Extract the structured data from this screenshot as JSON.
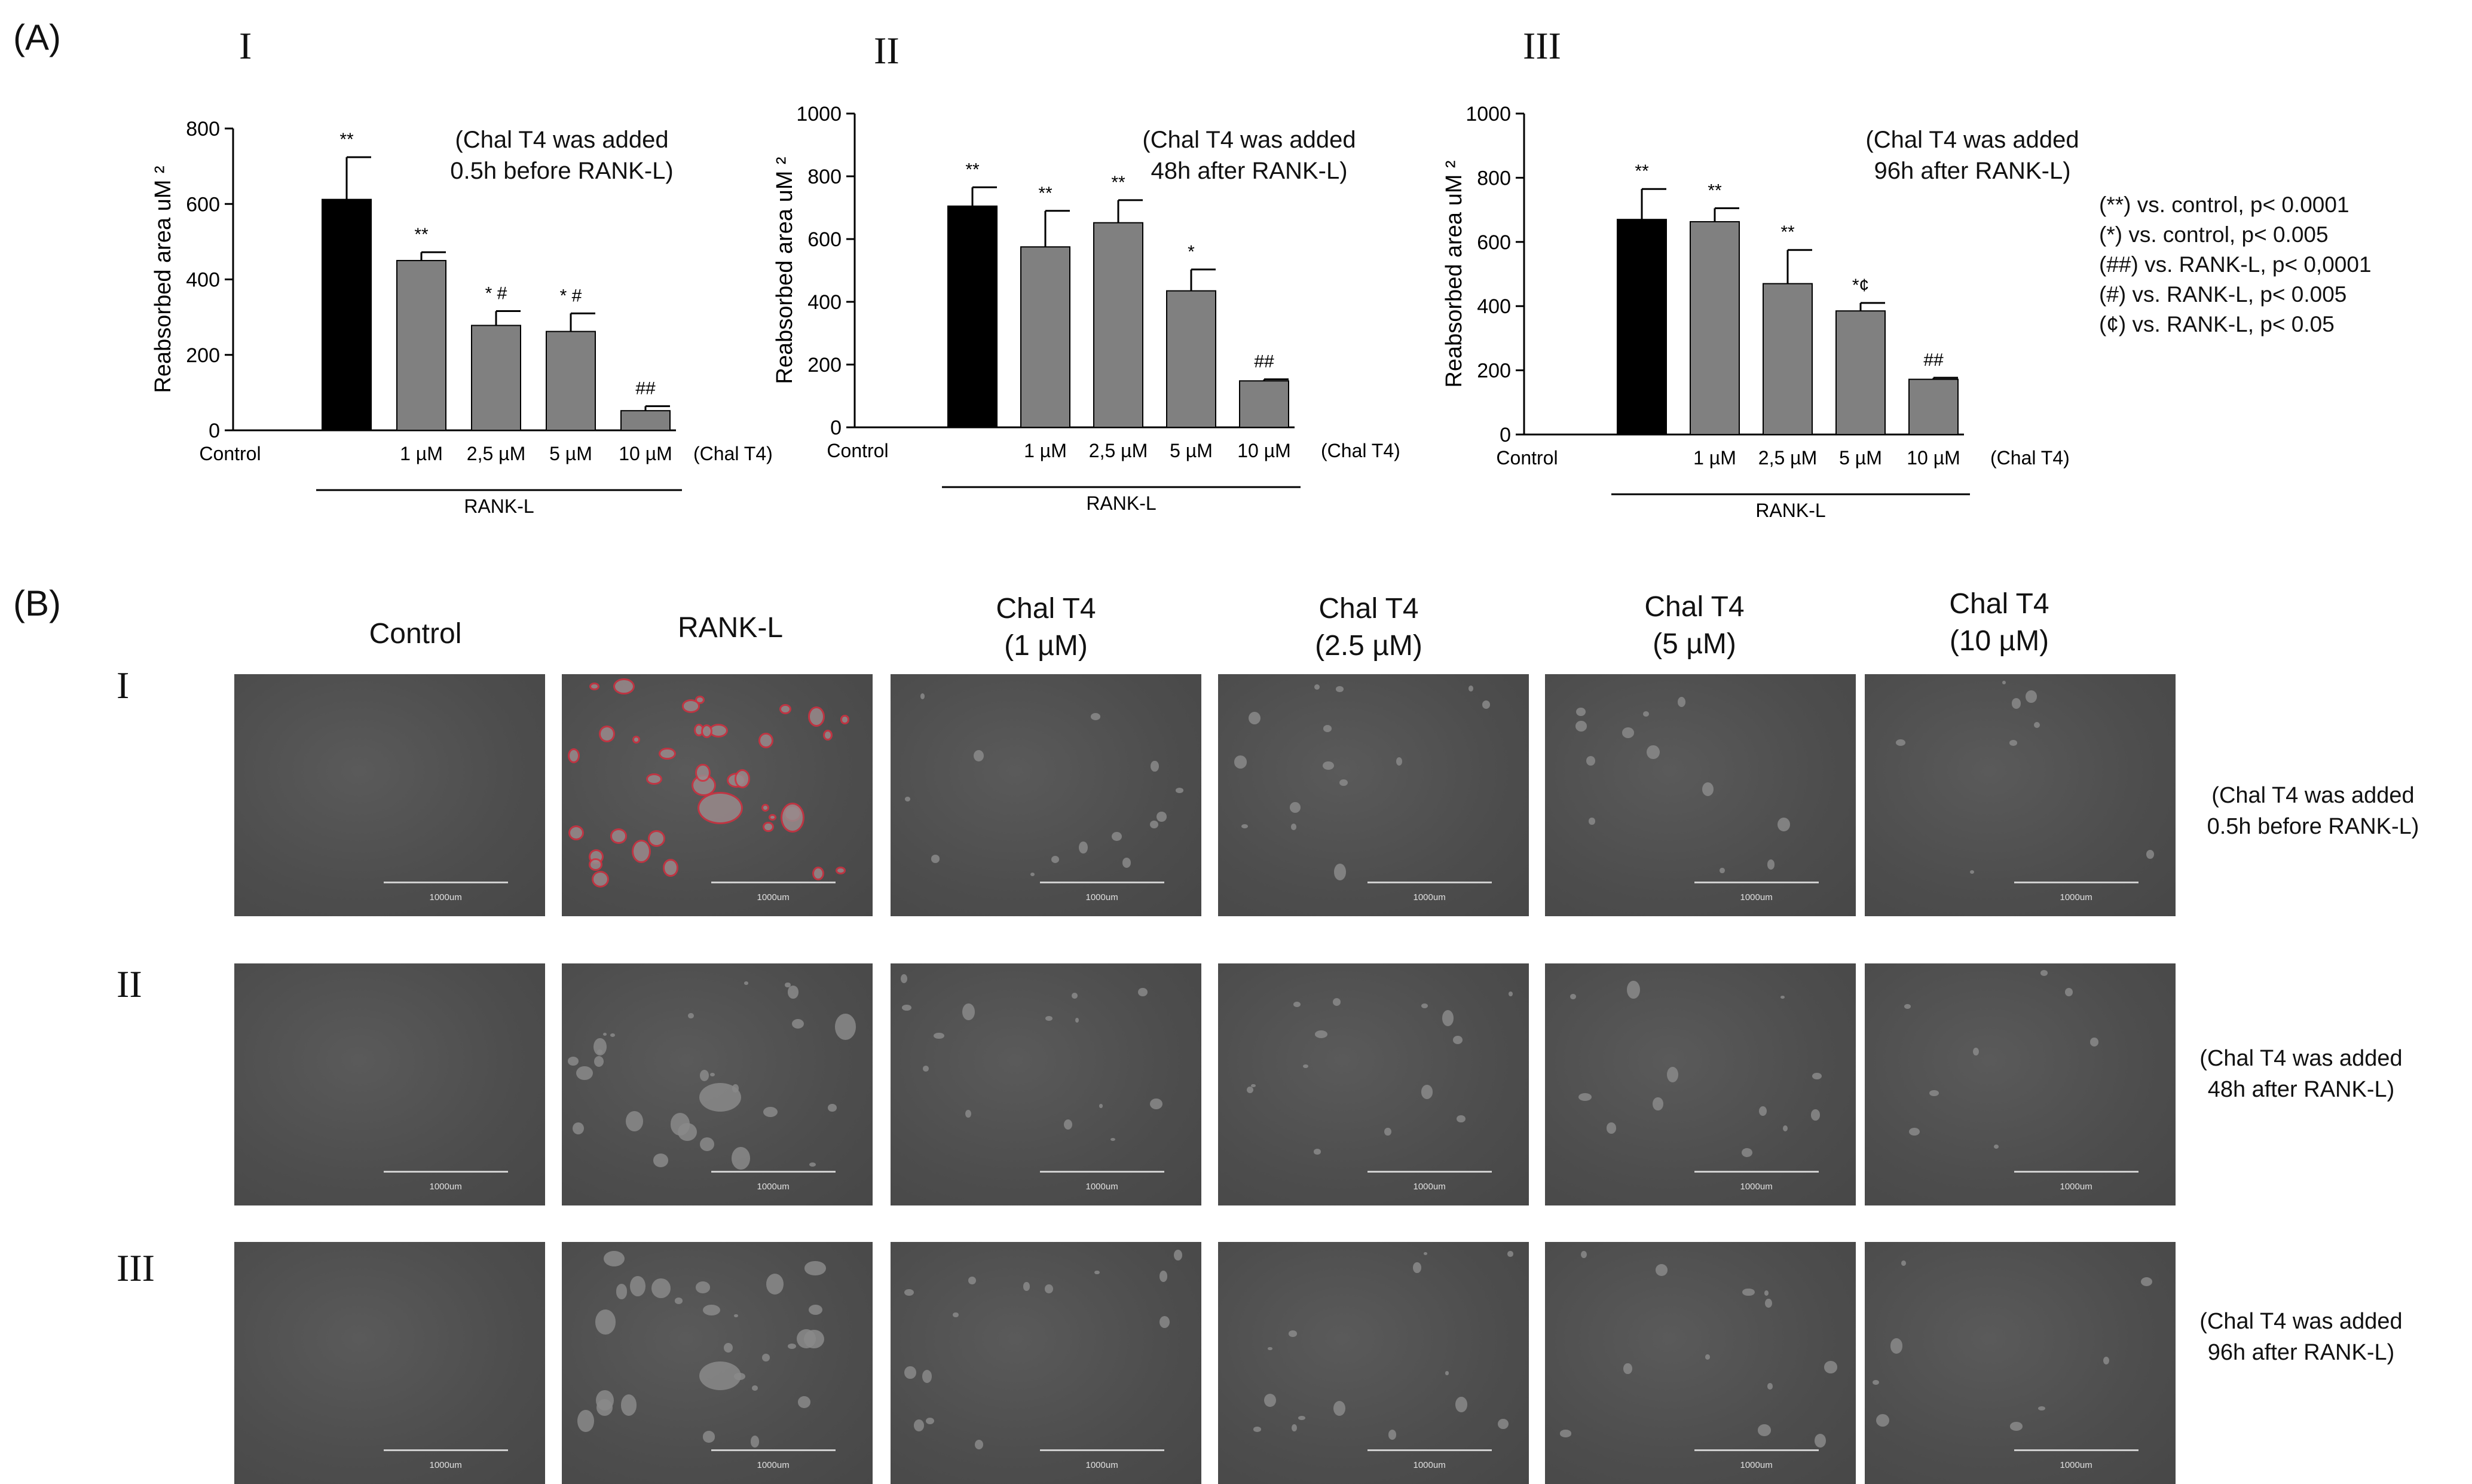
{
  "panel_a": {
    "label": "(A)",
    "legend": [
      "(**) vs. control, p< 0.0001",
      "(*) vs. control, p< 0.005",
      "(##) vs. RANK-L, p< 0,0001",
      "(#) vs. RANK-L, p< 0.005",
      "(¢) vs. RANK-L, p< 0.05"
    ]
  },
  "chart_data": [
    {
      "type": "bar",
      "panel": "I",
      "note_lines": [
        "(Chal T4 was added",
        "0.5h before RANK-L)"
      ],
      "ylabel": "Reabsorbed area uM ²",
      "ylim": [
        0,
        800
      ],
      "yticks": [
        "0",
        "200",
        "400",
        "600",
        "800"
      ],
      "categories": [
        "Control",
        "",
        "1 µM",
        "2,5 µM",
        "5 µM",
        "10 µM"
      ],
      "extra_xlabel": "(Chal T4)",
      "group_label": "RANK-L",
      "values": [
        0,
        612,
        450,
        278,
        262,
        52
      ],
      "errors": [
        0,
        112,
        22,
        38,
        48,
        12
      ],
      "colors": [
        "#000000",
        "#000000",
        "#808080",
        "#808080",
        "#808080",
        "#808080"
      ],
      "annotations": [
        "",
        "**",
        "**",
        "* #",
        "* #",
        "##"
      ]
    },
    {
      "type": "bar",
      "panel": "II",
      "note_lines": [
        "(Chal T4 was added",
        "48h after RANK-L)"
      ],
      "ylabel": "Reabsorbed area uM ²",
      "ylim": [
        0,
        1000
      ],
      "yticks": [
        "0",
        "200",
        "400",
        "600",
        "800",
        "1000"
      ],
      "categories": [
        "Control",
        "",
        "1 µM",
        "2,5 µM",
        "5 µM",
        "10 µM"
      ],
      "extra_xlabel": "(Chal T4)",
      "group_label": "RANK-L",
      "values": [
        0,
        705,
        575,
        652,
        435,
        148
      ],
      "errors": [
        0,
        60,
        115,
        72,
        68,
        5
      ],
      "colors": [
        "#000000",
        "#000000",
        "#808080",
        "#808080",
        "#808080",
        "#808080"
      ],
      "annotations": [
        "",
        "**",
        "**",
        "**",
        "*",
        "##"
      ]
    },
    {
      "type": "bar",
      "panel": "III",
      "note_lines": [
        "(Chal T4 was added",
        "96h after RANK-L)"
      ],
      "ylabel": "Reabsorbed area uM ²",
      "ylim": [
        0,
        1000
      ],
      "yticks": [
        "0",
        "200",
        "400",
        "600",
        "800",
        "1000"
      ],
      "categories": [
        "Control",
        "",
        "1 µM",
        "2,5 µM",
        "5 µM",
        "10 µM"
      ],
      "extra_xlabel": "(Chal T4)",
      "group_label": "RANK-L",
      "values": [
        0,
        670,
        663,
        470,
        385,
        172
      ],
      "errors": [
        0,
        95,
        42,
        105,
        25,
        5
      ],
      "colors": [
        "#000000",
        "#000000",
        "#808080",
        "#808080",
        "#808080",
        "#808080"
      ],
      "annotations": [
        "",
        "**",
        "**",
        "**",
        "*¢",
        "##"
      ]
    }
  ],
  "panel_b": {
    "label": "(B)",
    "columns": [
      [
        "Control"
      ],
      [
        "RANK-L"
      ],
      [
        "Chal T4",
        "(1 µM)"
      ],
      [
        "Chal T4",
        "(2.5 µM)"
      ],
      [
        "Chal T4",
        "(5 µM)"
      ],
      [
        "Chal T4",
        "(10 µM)"
      ]
    ],
    "rows": [
      {
        "roman": "I",
        "note_lines": [
          "(Chal T4 was added",
          "0.5h before RANK-L)"
        ]
      },
      {
        "roman": "II",
        "note_lines": [
          "(Chal T4 was added",
          "48h after RANK-L)"
        ]
      },
      {
        "roman": "III",
        "note_lines": [
          "(Chal T4 was added",
          "96h after RANK-L)"
        ]
      }
    ],
    "scale_label": "1000um"
  }
}
